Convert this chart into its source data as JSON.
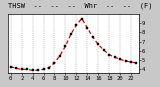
{
  "title_display": "THSW  --  --  --  Whr  --  --  (F)",
  "hours": [
    0,
    1,
    2,
    3,
    4,
    5,
    6,
    7,
    8,
    9,
    10,
    11,
    12,
    13,
    14,
    15,
    16,
    17,
    18,
    19,
    20,
    21,
    22,
    23
  ],
  "values": [
    43,
    41,
    40,
    40,
    39,
    39,
    40,
    42,
    47,
    55,
    65,
    78,
    88,
    95,
    85,
    75,
    67,
    61,
    56,
    53,
    51,
    49,
    48,
    47
  ],
  "line_color": "#dd0000",
  "marker_color": "#000000",
  "bg_color": "#c8c8c8",
  "plot_bg_color": "#ffffff",
  "grid_color": "#888888",
  "ylim": [
    36,
    100
  ],
  "xlim": [
    -0.5,
    23.5
  ],
  "yticks": [
    40,
    50,
    60,
    70,
    80,
    90
  ],
  "ytick_labels": [
    "4",
    "5",
    "6",
    "7",
    "8",
    "9"
  ],
  "xtick_positions": [
    0,
    2,
    4,
    6,
    8,
    10,
    12,
    14,
    16,
    18,
    20,
    22
  ],
  "xtick_labels": [
    "0",
    "2",
    "4",
    "6",
    "8",
    "10",
    "12",
    "14",
    "16",
    "18",
    "20",
    "22"
  ],
  "vgrid_positions": [
    0,
    2,
    4,
    6,
    8,
    10,
    12,
    14,
    16,
    18,
    20,
    22
  ],
  "title_fontsize": 5,
  "tick_fontsize": 4,
  "linewidth": 0.9,
  "markersize": 1.8
}
